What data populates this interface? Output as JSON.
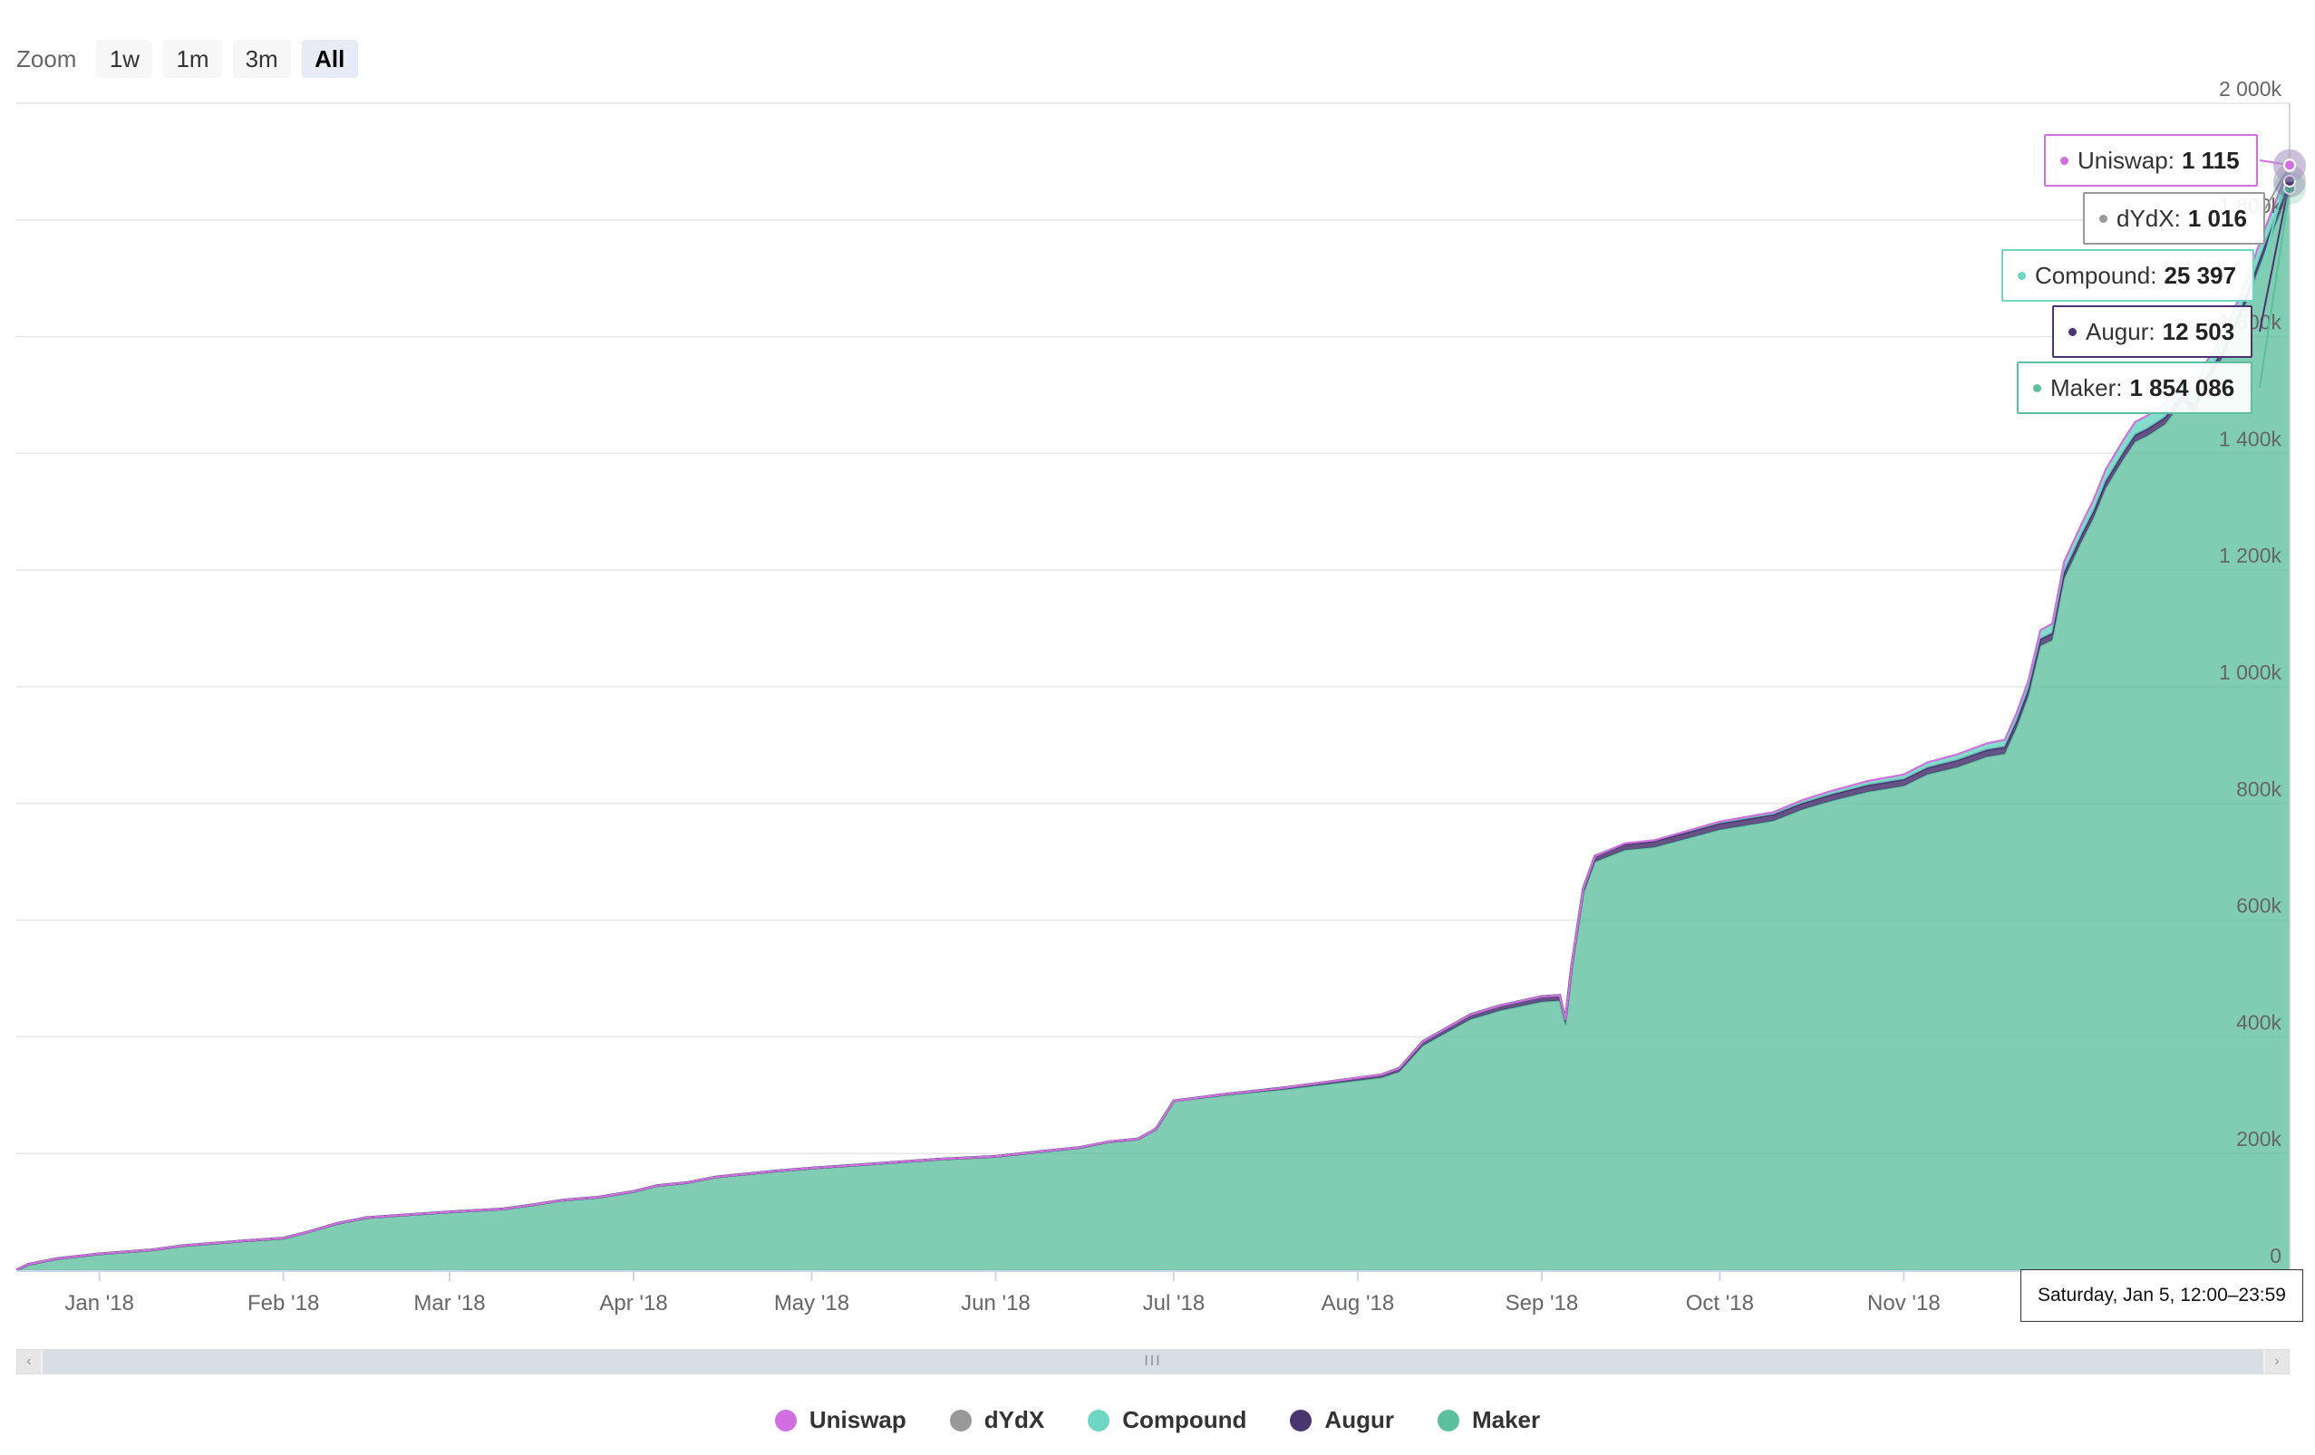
{
  "zoom": {
    "label": "Zoom",
    "buttons": [
      "1w",
      "1m",
      "3m",
      "All"
    ],
    "active": "All"
  },
  "legend": [
    {
      "name": "Uniswap",
      "color": "#d16ee0"
    },
    {
      "name": "dYdX",
      "color": "#999999"
    },
    {
      "name": "Compound",
      "color": "#6fd6c3"
    },
    {
      "name": "Augur",
      "color": "#4a3570"
    },
    {
      "name": "Maker",
      "color": "#5cbf9d"
    }
  ],
  "tooltip": {
    "date": "Saturday, Jan 5, 12:00–23:59",
    "entries": [
      {
        "name": "Uniswap",
        "sep": ":",
        "value": "1 115",
        "color": "#d16ee0"
      },
      {
        "name": "dYdX",
        "sep": ":",
        "value": "1 016",
        "color": "#999999"
      },
      {
        "name": "Compound",
        "sep": ":",
        "value": "25 397",
        "color": "#6fd6c3"
      },
      {
        "name": "Augur",
        "sep": ":",
        "value": "12 503",
        "color": "#4a3570"
      },
      {
        "name": "Maker",
        "sep": ":",
        "value": "1 854 086",
        "color": "#5cbf9d"
      }
    ]
  },
  "scrollbar": {
    "thumb_grip": "III",
    "left_arrow": "‹",
    "right_arrow": "›"
  },
  "chart_data": {
    "type": "area",
    "stacked": true,
    "grid": true,
    "legend_position": "bottom",
    "ylim": [
      0,
      2000000
    ],
    "y_ticks": [
      {
        "value": 0,
        "label": "0"
      },
      {
        "value": 200000,
        "label": "200k"
      },
      {
        "value": 400000,
        "label": "400k"
      },
      {
        "value": 600000,
        "label": "600k"
      },
      {
        "value": 800000,
        "label": "800k"
      },
      {
        "value": 1000000,
        "label": "1 000k"
      },
      {
        "value": 1200000,
        "label": "1 200k"
      },
      {
        "value": 1400000,
        "label": "1 400k"
      },
      {
        "value": 1600000,
        "label": "1 600k"
      },
      {
        "value": 1800000,
        "label": "1 800k"
      },
      {
        "value": 2000000,
        "label": "2 000k"
      }
    ],
    "xlim": [
      "2017-12-18",
      "2019-01-05"
    ],
    "x_ticks": [
      {
        "date": "2018-01-01",
        "label": "Jan '18"
      },
      {
        "date": "2018-02-01",
        "label": "Feb '18"
      },
      {
        "date": "2018-03-01",
        "label": "Mar '18"
      },
      {
        "date": "2018-04-01",
        "label": "Apr '18"
      },
      {
        "date": "2018-05-01",
        "label": "May '18"
      },
      {
        "date": "2018-06-01",
        "label": "Jun '18"
      },
      {
        "date": "2018-07-01",
        "label": "Jul '18"
      },
      {
        "date": "2018-08-01",
        "label": "Aug '18"
      },
      {
        "date": "2018-09-01",
        "label": "Sep '18"
      },
      {
        "date": "2018-10-01",
        "label": "Oct '18"
      },
      {
        "date": "2018-11-01",
        "label": "Nov '18"
      }
    ],
    "dates": [
      "2017-12-18",
      "2017-12-20",
      "2017-12-25",
      "2018-01-01",
      "2018-01-10",
      "2018-01-15",
      "2018-01-25",
      "2018-02-01",
      "2018-02-05",
      "2018-02-10",
      "2018-02-15",
      "2018-02-22",
      "2018-03-01",
      "2018-03-10",
      "2018-03-15",
      "2018-03-20",
      "2018-03-26",
      "2018-04-01",
      "2018-04-05",
      "2018-04-10",
      "2018-04-15",
      "2018-04-20",
      "2018-04-25",
      "2018-05-01",
      "2018-05-08",
      "2018-05-15",
      "2018-05-22",
      "2018-06-01",
      "2018-06-10",
      "2018-06-15",
      "2018-06-20",
      "2018-06-25",
      "2018-06-28",
      "2018-07-01",
      "2018-07-10",
      "2018-07-20",
      "2018-07-28",
      "2018-08-01",
      "2018-08-05",
      "2018-08-08",
      "2018-08-12",
      "2018-08-20",
      "2018-08-25",
      "2018-09-01",
      "2018-09-04",
      "2018-09-05",
      "2018-09-06",
      "2018-09-08",
      "2018-09-10",
      "2018-09-12",
      "2018-09-15",
      "2018-09-20",
      "2018-10-01",
      "2018-10-10",
      "2018-10-15",
      "2018-10-20",
      "2018-10-26",
      "2018-11-01",
      "2018-11-05",
      "2018-11-10",
      "2018-11-15",
      "2018-11-18",
      "2018-11-20",
      "2018-11-22",
      "2018-11-24",
      "2018-11-26",
      "2018-11-28",
      "2018-12-01",
      "2018-12-03",
      "2018-12-05",
      "2018-12-08",
      "2018-12-10",
      "2018-12-12",
      "2018-12-15",
      "2018-12-18",
      "2018-12-20",
      "2018-12-22",
      "2018-12-25",
      "2018-12-28",
      "2019-01-01",
      "2019-01-05"
    ],
    "series": [
      {
        "name": "Maker",
        "color": "#5cbf9d",
        "values": [
          0,
          10000,
          20000,
          28000,
          35000,
          42000,
          50000,
          55000,
          65000,
          80000,
          90000,
          95000,
          100000,
          105000,
          112000,
          120000,
          125000,
          135000,
          145000,
          150000,
          160000,
          165000,
          170000,
          175000,
          180000,
          185000,
          190000,
          195000,
          205000,
          210000,
          220000,
          225000,
          242000,
          290000,
          300000,
          310000,
          320000,
          325000,
          330000,
          340000,
          385000,
          430000,
          445000,
          460000,
          462000,
          420000,
          510000,
          645000,
          700000,
          708000,
          720000,
          725000,
          755000,
          770000,
          790000,
          805000,
          820000,
          830000,
          850000,
          862000,
          880000,
          885000,
          930000,
          985000,
          1070000,
          1080000,
          1185000,
          1250000,
          1290000,
          1340000,
          1390000,
          1420000,
          1430000,
          1450000,
          1490000,
          1470000,
          1520000,
          1570000,
          1640000,
          1750000,
          1854086
        ]
      },
      {
        "name": "Augur",
        "color": "#4a3570",
        "values": [
          0,
          0,
          0,
          0,
          0,
          0,
          0,
          0,
          0,
          0,
          0,
          0,
          0,
          0,
          0,
          0,
          0,
          0,
          0,
          0,
          0,
          0,
          0,
          0,
          0,
          0,
          0,
          0,
          0,
          0,
          0,
          0,
          0,
          0,
          2000,
          3000,
          4000,
          4500,
          5000,
          6000,
          7000,
          8000,
          8500,
          9000,
          9000,
          9000,
          9000,
          9500,
          10000,
          10000,
          10500,
          10500,
          11000,
          11000,
          11000,
          11000,
          11500,
          11500,
          11500,
          12000,
          12000,
          12000,
          12000,
          12000,
          12000,
          12000,
          12000,
          12000,
          12000,
          12000,
          12000,
          12000,
          12000,
          12000,
          12200,
          12200,
          12300,
          12400,
          12400,
          12500,
          12503
        ]
      },
      {
        "name": "Compound",
        "color": "#6fd6c3",
        "values": [
          0,
          0,
          0,
          0,
          0,
          0,
          0,
          0,
          0,
          0,
          0,
          0,
          0,
          0,
          0,
          0,
          0,
          0,
          0,
          0,
          0,
          0,
          0,
          0,
          0,
          0,
          0,
          0,
          0,
          0,
          0,
          0,
          0,
          0,
          0,
          0,
          0,
          0,
          0,
          0,
          0,
          0,
          0,
          0,
          0,
          0,
          0,
          0,
          0,
          500,
          1000,
          1500,
          3000,
          4000,
          5000,
          6000,
          7000,
          8000,
          9000,
          10000,
          11000,
          12000,
          13000,
          14000,
          15000,
          16000,
          17000,
          18000,
          19000,
          20000,
          21000,
          22000,
          22500,
          23000,
          23500,
          24000,
          24500,
          25000,
          25100,
          25300,
          25397
        ]
      },
      {
        "name": "dYdX",
        "color": "#999999",
        "values": [
          0,
          0,
          0,
          0,
          0,
          0,
          0,
          0,
          0,
          0,
          0,
          0,
          0,
          0,
          0,
          0,
          0,
          0,
          0,
          0,
          0,
          0,
          0,
          0,
          0,
          0,
          0,
          0,
          0,
          0,
          0,
          0,
          0,
          0,
          0,
          0,
          0,
          0,
          0,
          0,
          0,
          0,
          0,
          0,
          0,
          0,
          0,
          0,
          0,
          0,
          0,
          0,
          0,
          0,
          0,
          0,
          0,
          0,
          0,
          0,
          0,
          0,
          0,
          0,
          0,
          0,
          0,
          0,
          0,
          0,
          0,
          0,
          0,
          0,
          0,
          0,
          0,
          500,
          800,
          950,
          1016
        ]
      },
      {
        "name": "Uniswap",
        "color": "#d16ee0",
        "values": [
          0,
          0,
          0,
          0,
          0,
          0,
          0,
          0,
          0,
          0,
          0,
          0,
          0,
          0,
          0,
          0,
          0,
          0,
          0,
          0,
          0,
          0,
          0,
          0,
          0,
          0,
          0,
          0,
          0,
          0,
          0,
          0,
          0,
          0,
          0,
          0,
          0,
          0,
          0,
          0,
          0,
          0,
          0,
          0,
          0,
          0,
          0,
          0,
          0,
          0,
          0,
          0,
          0,
          0,
          0,
          0,
          0,
          0,
          0,
          0,
          0,
          0,
          0,
          0,
          0,
          0,
          0,
          0,
          0,
          0,
          0,
          0,
          0,
          0,
          0,
          0,
          0,
          0,
          0,
          900,
          1115
        ]
      }
    ]
  }
}
